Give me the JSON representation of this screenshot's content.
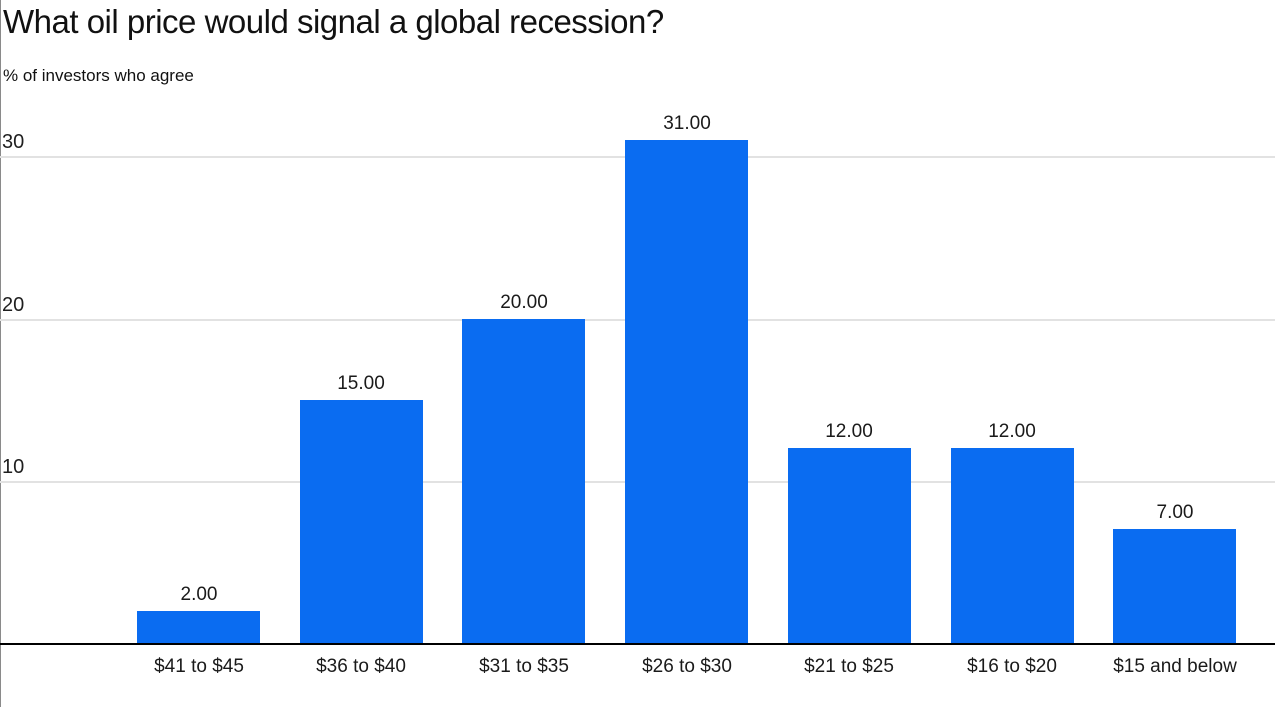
{
  "title": "What oil price would signal a global recession?",
  "subtitle": "% of investors who agree",
  "chart_data": {
    "type": "bar",
    "title": "What oil price would signal a global recession?",
    "subtitle": "% of investors who agree",
    "categories": [
      "$41 to $45",
      "$36 to $40",
      "$31 to $35",
      "$26 to $30",
      "$21 to $25",
      "$16 to $20",
      "$15 and below"
    ],
    "values": [
      2,
      15,
      20,
      31,
      12,
      12,
      7
    ],
    "value_labels": [
      "2.00",
      "15.00",
      "20.00",
      "31.00",
      "12.00",
      "12.00",
      "7.00"
    ],
    "xlabel": "",
    "ylabel": "% of investors who agree",
    "y_ticks": [
      10,
      20,
      30
    ],
    "ylim": [
      0,
      33
    ],
    "grid": true,
    "legend": "none",
    "bar_color": "#0a6cf1"
  },
  "colors": {
    "bar": "#0a6cf1",
    "gridline": "#e2e2e2",
    "baseline": "#000000",
    "frame_line": "#8a8a8a",
    "text": "#1a1a1a"
  }
}
